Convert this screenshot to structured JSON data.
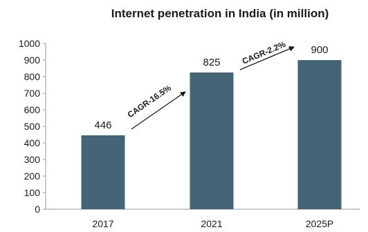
{
  "chart_data": {
    "type": "bar",
    "title": "Internet penetration in India (in million)",
    "categories": [
      "2017",
      "2021",
      "2025P"
    ],
    "values": [
      446,
      825,
      900
    ],
    "data_labels": [
      "446",
      "825",
      "900"
    ],
    "ylim": [
      0,
      1000
    ],
    "yticks": [
      0,
      100,
      200,
      300,
      400,
      500,
      600,
      700,
      800,
      900,
      1000
    ],
    "grid": false,
    "bar_color": "#456577",
    "annotations": [
      {
        "text": "CAGR-16.5%",
        "from_category": 0,
        "to_category": 1
      },
      {
        "text": "CAGR-2.2%",
        "from_category": 1,
        "to_category": 2
      }
    ]
  }
}
